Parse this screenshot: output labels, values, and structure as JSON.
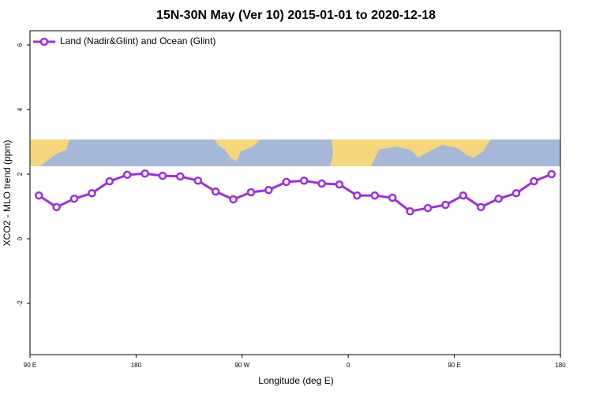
{
  "chart_data": {
    "type": "line",
    "title": "15N-30N May (Ver 10)   2015-01-01 to 2020-12-18",
    "x_label": "Longitude (deg E)",
    "y_label": "XCO2 - MLO trend (ppm)",
    "x": [
      97.5,
      112.5,
      127.5,
      142.5,
      157.5,
      172.5,
      187.5,
      202.5,
      217.5,
      232.5,
      247.5,
      262.5,
      277.5,
      292.5,
      307.5,
      322.5,
      337.5,
      352.5,
      367.5,
      382.5,
      397.5,
      412.5,
      427.5,
      442.5,
      457.5,
      472.5,
      487.5,
      502.5,
      517.5,
      532.5
    ],
    "series": [
      {
        "name": "Land (Nadir&Glint) and Ocean (Glint)",
        "color": "#9b2fe0",
        "values": [
          1.34,
          0.98,
          1.24,
          1.41,
          1.78,
          1.98,
          2.02,
          1.95,
          1.93,
          1.8,
          1.46,
          1.22,
          1.44,
          1.51,
          1.76,
          1.8,
          1.71,
          1.68,
          1.34,
          1.34,
          1.27,
          0.85,
          0.95,
          1.05,
          1.34,
          0.98,
          1.24,
          1.41,
          1.78,
          2.0
        ]
      }
    ],
    "xlim": [
      90,
      540
    ],
    "xticks": [
      {
        "value": 90,
        "label": "90 E"
      },
      180,
      {
        "value": 270,
        "label": "90 W"
      },
      {
        "value": 360,
        "label": "0"
      },
      {
        "value": 450,
        "label": "90 E"
      },
      {
        "value": 540,
        "label": "180"
      }
    ],
    "ylim": [
      -3.585,
      6.44
    ],
    "yticks": [
      -2,
      0,
      2,
      4,
      6
    ],
    "legend": "top-left"
  }
}
